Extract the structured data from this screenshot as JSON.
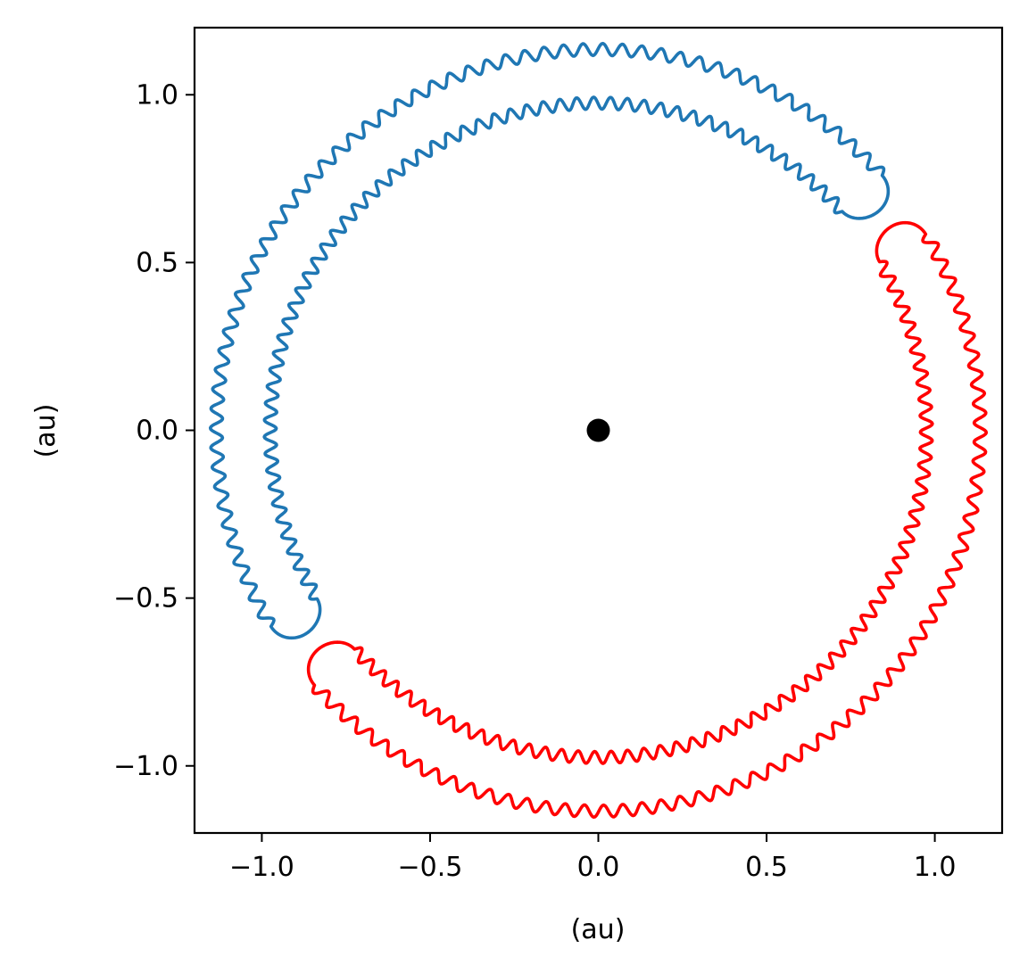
{
  "chart_data": {
    "type": "line",
    "title": "",
    "xlabel": "(au)",
    "ylabel": "(au)",
    "xlim": [
      -1.2,
      1.2
    ],
    "ylim": [
      -1.2,
      1.2
    ],
    "grid": false,
    "legend": "none",
    "x_ticks": [
      -1.0,
      -0.5,
      0.0,
      0.5,
      1.0
    ],
    "y_ticks": [
      -1.0,
      -0.5,
      0.0,
      0.5,
      1.0
    ],
    "x_tick_labels": [
      "−1.0",
      "−0.5",
      "0.0",
      "0.5",
      "1.0"
    ],
    "y_tick_labels": [
      "−1.0",
      "−0.5",
      "0.0",
      "0.5",
      "1.0"
    ],
    "central_point": {
      "x": 0.0,
      "y": 0.0,
      "color": "#000000"
    },
    "series": [
      {
        "color": "#1f77b4",
        "description": "tadpole-shaped loop, upper-left arc",
        "angle_start_deg": 42,
        "angle_end_deg": 211,
        "r_inner": 0.975,
        "r_outer": 1.135,
        "wiggle_amplitude": 0.018,
        "wiggle_count": 58
      },
      {
        "color": "#ff0000",
        "description": "tadpole-shaped loop, lower-right arc",
        "angle_start_deg": 222,
        "angle_end_deg": 391,
        "r_inner": 0.975,
        "r_outer": 1.135,
        "wiggle_amplitude": 0.018,
        "wiggle_count": 58
      }
    ]
  }
}
